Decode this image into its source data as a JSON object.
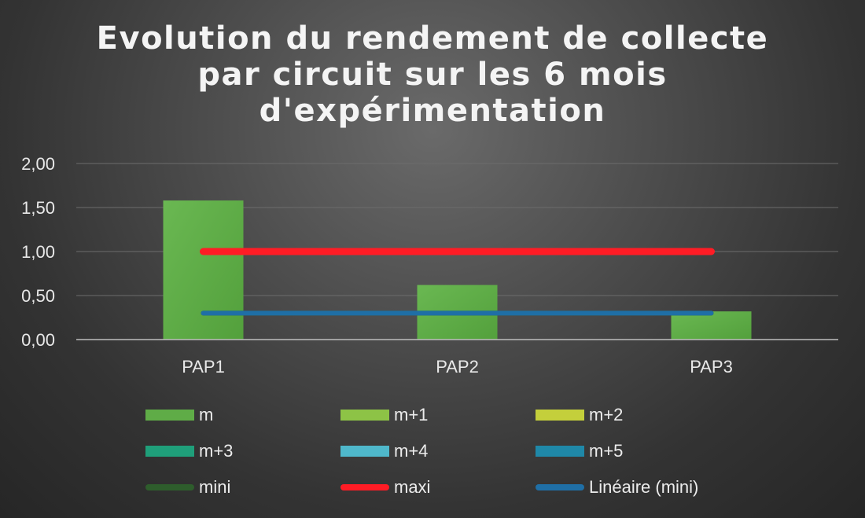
{
  "chart_data": {
    "type": "bar",
    "title_lines": [
      "Evolution du rendement de collecte",
      "par circuit sur les 6 mois",
      "d'expérimentation"
    ],
    "categories": [
      "PAP1",
      "PAP2",
      "PAP3"
    ],
    "ylim": [
      0,
      2
    ],
    "y_ticks": [
      "0,00",
      "0,50",
      "1,00",
      "1,50",
      "2,00"
    ],
    "grid": true,
    "legend_position": "bottom",
    "series": [
      {
        "name": "m",
        "kind": "bar",
        "color": "#5fac47",
        "values": [
          1.58,
          0.62,
          0.32
        ]
      },
      {
        "name": "m+1",
        "kind": "bar",
        "color": "#8dc346",
        "values": [
          null,
          null,
          null
        ]
      },
      {
        "name": "m+2",
        "kind": "bar",
        "color": "#c4cf3b",
        "values": [
          null,
          null,
          null
        ]
      },
      {
        "name": "m+3",
        "kind": "bar",
        "color": "#1f9f7a",
        "values": [
          null,
          null,
          null
        ]
      },
      {
        "name": "m+4",
        "kind": "bar",
        "color": "#4fb8cb",
        "values": [
          null,
          null,
          null
        ]
      },
      {
        "name": "m+5",
        "kind": "bar",
        "color": "#1f88a8",
        "values": [
          null,
          null,
          null
        ]
      },
      {
        "name": "mini",
        "kind": "line",
        "color": "#2e5d2c",
        "values": [
          0.3,
          0.3,
          0.3
        ]
      },
      {
        "name": "maxi",
        "kind": "line",
        "color": "#ff1c25",
        "values": [
          1.0,
          1.0,
          1.0
        ]
      },
      {
        "name": "Linéaire (mini)",
        "kind": "line",
        "color": "#1f6fa6",
        "values": [
          0.3,
          0.3,
          0.3
        ]
      }
    ]
  }
}
